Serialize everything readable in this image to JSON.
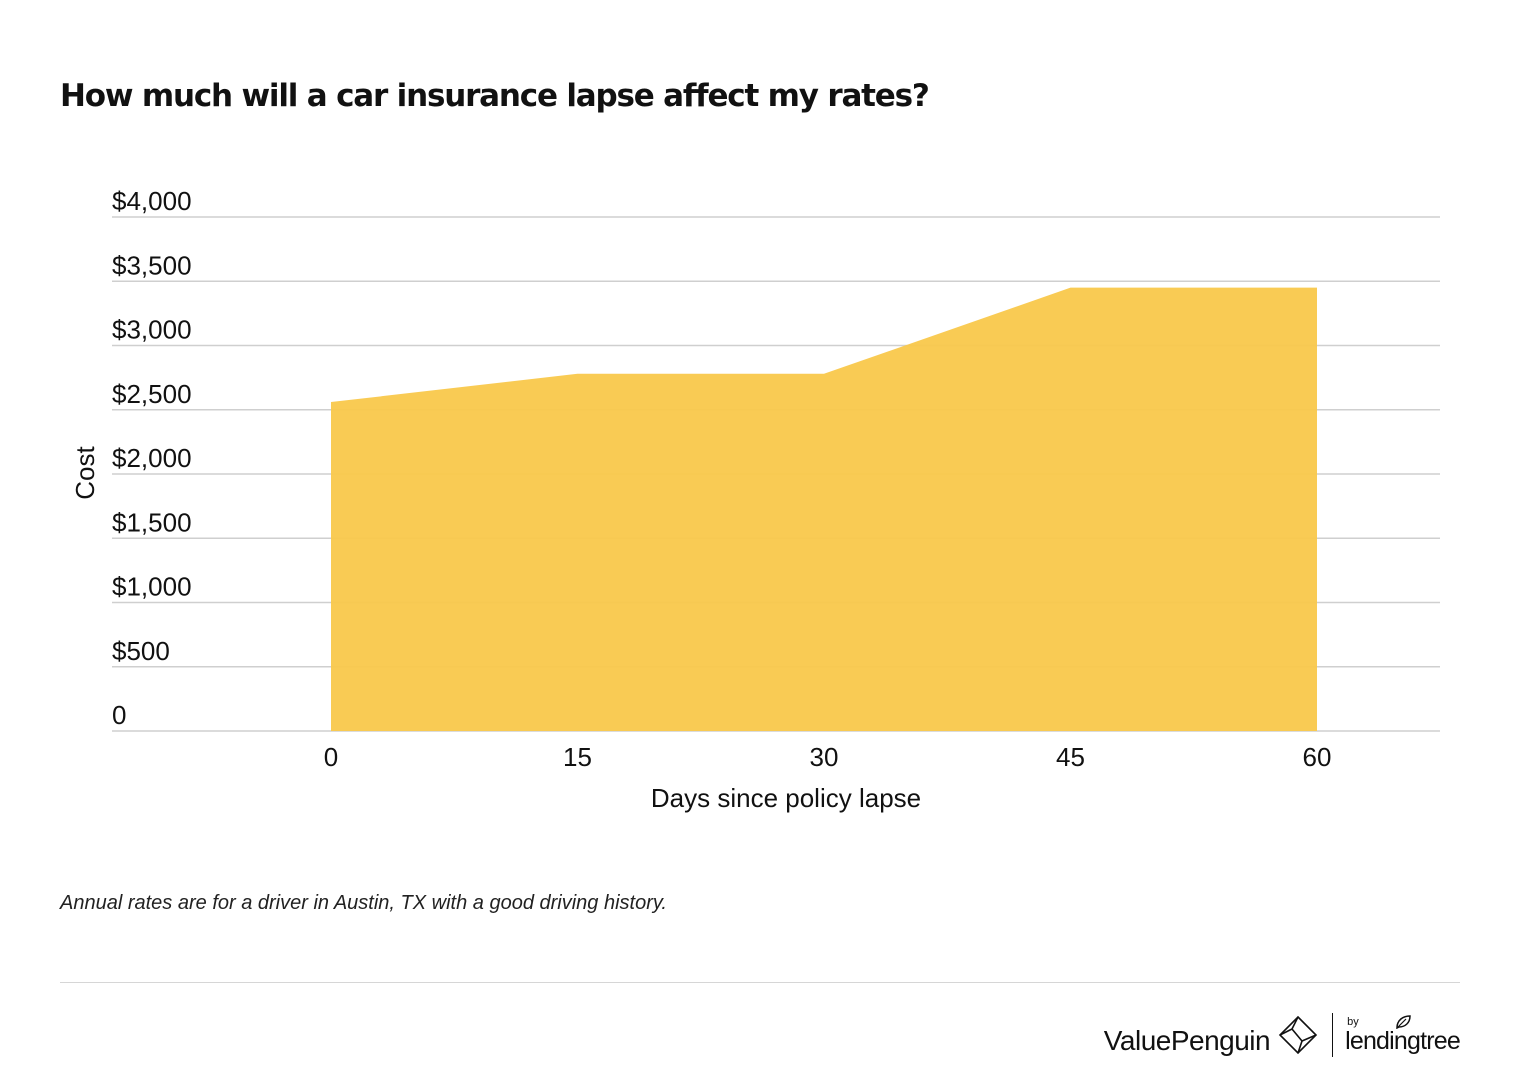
{
  "chart_data": {
    "type": "area",
    "title": "How much will a car insurance lapse affect my rates?",
    "x": [
      0,
      15,
      30,
      45,
      60
    ],
    "x_tick_labels": [
      "0",
      "15",
      "30",
      "45",
      "60"
    ],
    "values": [
      2560,
      2780,
      2780,
      3450,
      3450
    ],
    "xlabel": "Days since policy lapse",
    "ylabel": "Cost",
    "ylim": [
      0,
      4000
    ],
    "y_ticks": [
      0,
      500,
      1000,
      1500,
      2000,
      2500,
      3000,
      3500,
      4000
    ],
    "y_tick_labels": [
      "0",
      "$500",
      "$1,000",
      "$1,500",
      "$2,000",
      "$2,500",
      "$3,000",
      "$3,500",
      "$4,000"
    ],
    "grid": true,
    "fill_color": "#f9c84b"
  },
  "footnote": "Annual rates are for a driver in Austin, TX with a good driving history.",
  "brand": {
    "primary": "ValuePenguin",
    "by": "by",
    "secondary": "lendingtree"
  }
}
